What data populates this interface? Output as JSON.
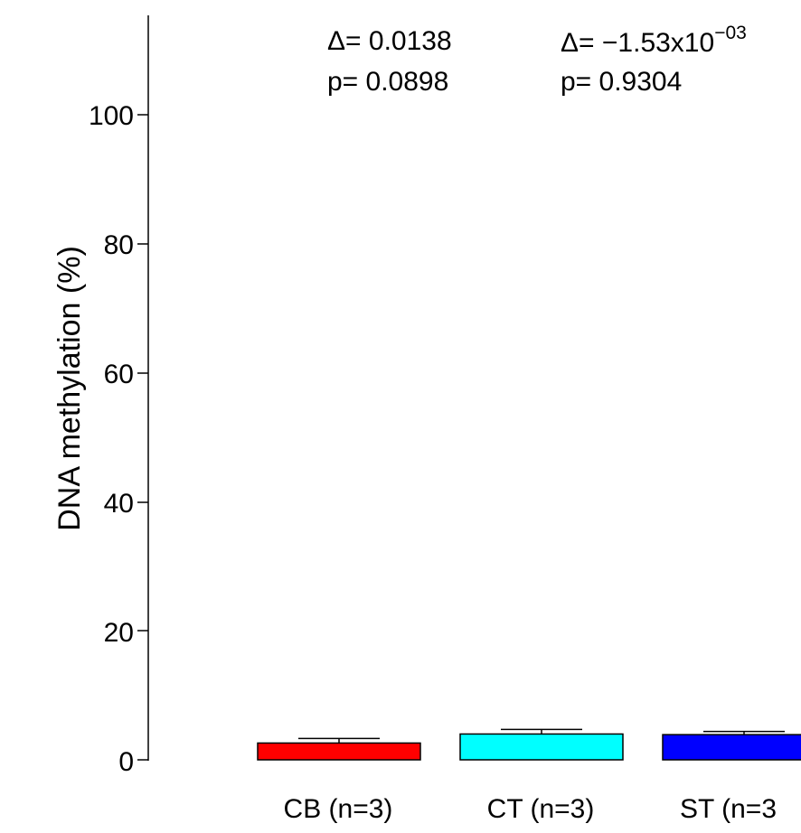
{
  "chart_data": {
    "type": "bar",
    "categories": [
      "CB (n=3)",
      "CT (n=3)",
      "ST (n=3"
    ],
    "values": [
      2.6,
      4.0,
      3.9
    ],
    "error_upper": [
      3.3,
      4.7,
      4.4
    ],
    "colors": [
      "#ff0000",
      "#00ffff",
      "#0000ff"
    ],
    "ylabel": "DNA methylation (%)",
    "yticks": [
      "0",
      "20",
      "40",
      "60",
      "80",
      "100"
    ],
    "ylim": [
      0,
      115
    ],
    "grid": false,
    "annotations": [
      {
        "delta_symbol": "Δ",
        "delta_text": "=  0.0138",
        "p_text": "p= 0.0898"
      },
      {
        "delta_symbol": "Δ",
        "delta_text": "= −1.53x10",
        "delta_exp": "−03",
        "p_text": "p= 0.9304"
      }
    ]
  }
}
